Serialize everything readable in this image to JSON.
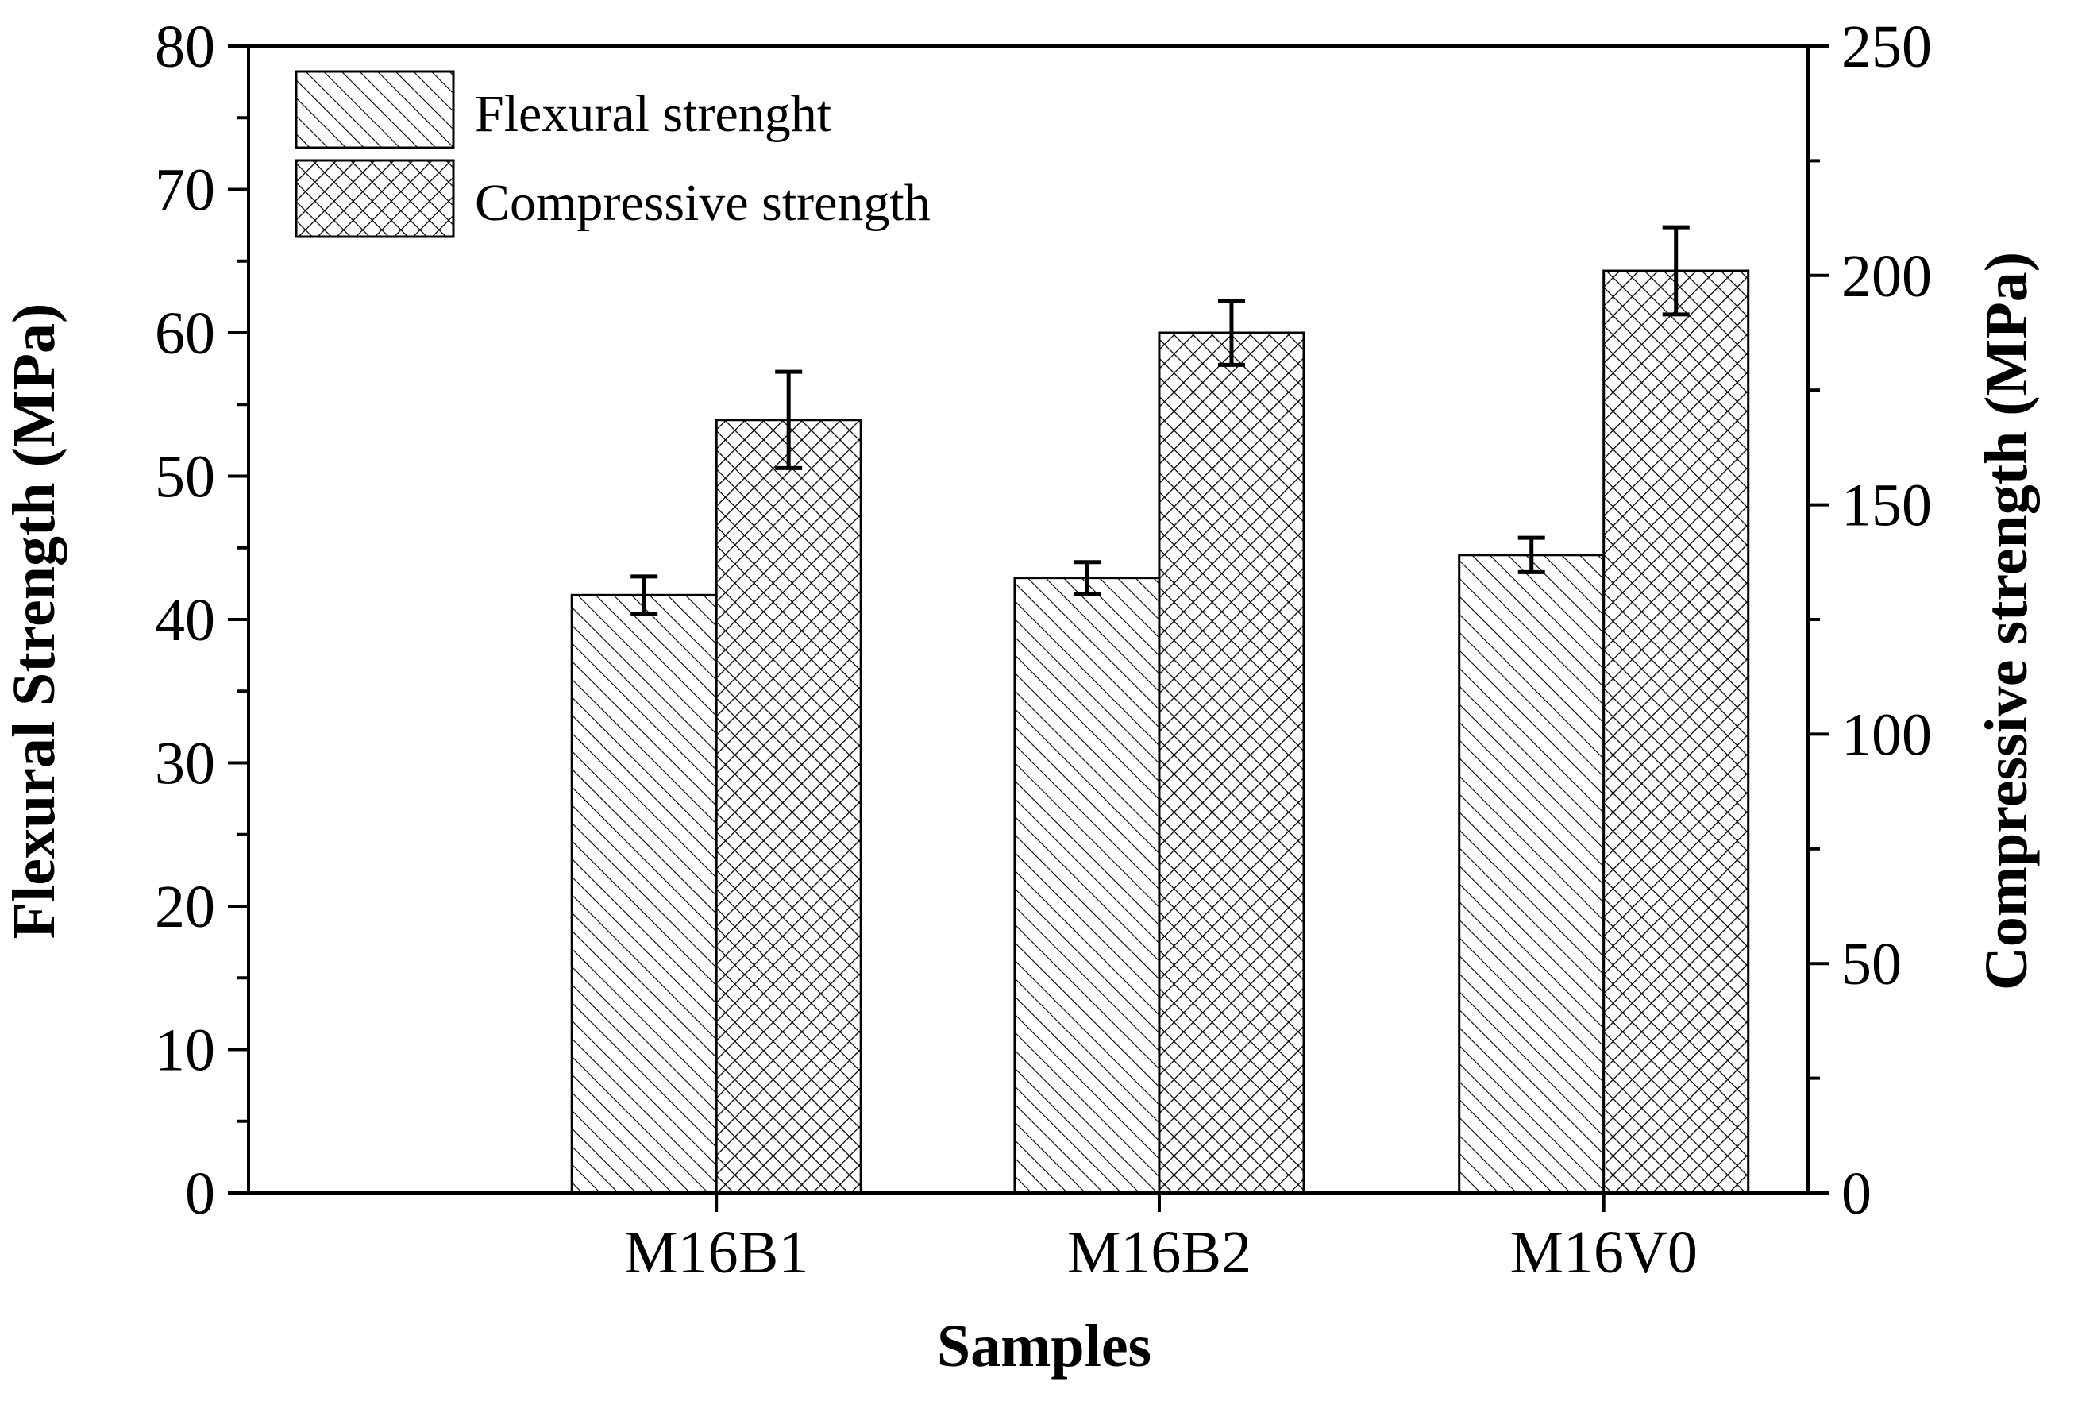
{
  "chart_data": {
    "type": "bar",
    "categories": [
      "M16B1",
      "M16B2",
      "M16V0"
    ],
    "xlabel": "Samples",
    "ylabel": "Flexural Strength (MPa)",
    "y2label": "Compressive strength (MPa)",
    "ylim": [
      0,
      80
    ],
    "y2lim": [
      0,
      250
    ],
    "yticks": [
      0,
      10,
      20,
      30,
      40,
      50,
      60,
      70,
      80
    ],
    "y2ticks": [
      0,
      50,
      100,
      150,
      200,
      250
    ],
    "legend_position": "top-left",
    "grid": false,
    "series": [
      {
        "name": "Flexural strenght",
        "axis": "left",
        "pattern": "diagonal-hatch",
        "values": [
          41.7,
          42.9,
          44.5
        ],
        "errors": [
          1.3,
          1.1,
          1.2
        ]
      },
      {
        "name": "Compressive strength",
        "axis": "right",
        "pattern": "cross-hatch",
        "values": [
          168.5,
          187.5,
          201.0
        ],
        "errors": [
          10.5,
          7.0,
          9.5
        ]
      }
    ]
  }
}
